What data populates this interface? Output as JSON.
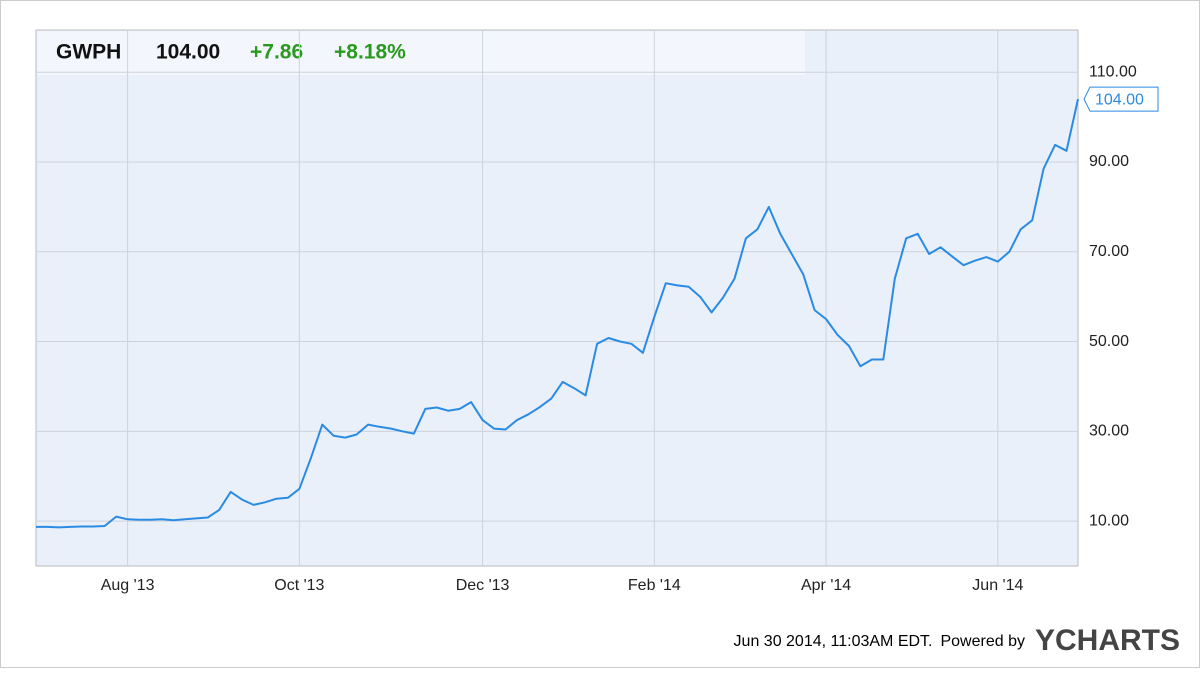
{
  "chart_data": {
    "type": "line",
    "title": "GWPH",
    "price": "104.00",
    "change": "+7.86",
    "change_percent": "+8.18%",
    "categories": [
      null,
      null,
      null,
      null,
      null,
      null,
      null,
      null,
      "Aug '13",
      null,
      null,
      null,
      null,
      null,
      null,
      null,
      null,
      null,
      null,
      null,
      null,
      null,
      null,
      "Oct '13",
      null,
      null,
      null,
      null,
      null,
      null,
      null,
      null,
      null,
      null,
      null,
      null,
      null,
      null,
      null,
      "Dec '13",
      null,
      null,
      null,
      null,
      null,
      null,
      null,
      null,
      null,
      null,
      null,
      null,
      null,
      null,
      "Feb '14",
      null,
      null,
      null,
      null,
      null,
      null,
      null,
      null,
      null,
      null,
      null,
      null,
      null,
      null,
      "Apr '14",
      null,
      null,
      null,
      null,
      null,
      null,
      null,
      null,
      null,
      null,
      null,
      null,
      null,
      null,
      "Jun '14",
      null,
      null,
      null,
      null,
      null,
      null,
      null
    ],
    "values": [
      8.7,
      8.7,
      8.6,
      8.7,
      8.8,
      8.8,
      8.9,
      11.0,
      10.4,
      10.3,
      10.3,
      10.4,
      10.2,
      10.4,
      10.6,
      10.8,
      12.5,
      16.5,
      14.8,
      13.6,
      14.2,
      15.0,
      15.2,
      17.2,
      24,
      31.5,
      29,
      28.6,
      29.3,
      31.5,
      31,
      30.6,
      30,
      29.5,
      35,
      35.3,
      34.6,
      35,
      36.5,
      32.5,
      30.6,
      30.4,
      32.5,
      33.8,
      35.4,
      37.3,
      41,
      39.6,
      38,
      49.5,
      50.8,
      50,
      49.5,
      47.5,
      55.5,
      63,
      62.5,
      62.2,
      60,
      56.5,
      59.8,
      64,
      73,
      75,
      80,
      74,
      69.5,
      65,
      57,
      55,
      51.5,
      49,
      44.5,
      46,
      46,
      64,
      73,
      74,
      69.5,
      71,
      69,
      67,
      68,
      68.8,
      67.8,
      70,
      75,
      77,
      88.5,
      93.8,
      92.5,
      104
    ],
    "color": "#2b8be3",
    "ylim": [
      0,
      119.4
    ],
    "yticks": [
      {
        "value": 10,
        "label": "10.00"
      },
      {
        "value": 30,
        "label": "30.00"
      },
      {
        "value": 50,
        "label": "50.00"
      },
      {
        "value": 70,
        "label": "70.00"
      },
      {
        "value": 90,
        "label": "90.00"
      },
      {
        "value": 110,
        "label": "110.00"
      }
    ],
    "grid": true,
    "timestamp": "Jun 30 2014, 11:03AM EDT.",
    "powered_by": "Powered by",
    "brand": "YCHARTS"
  }
}
